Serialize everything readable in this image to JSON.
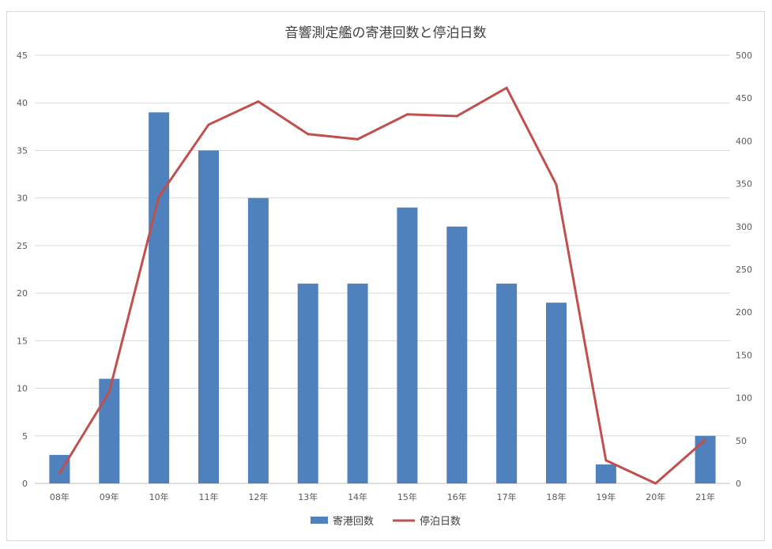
{
  "chart_data": {
    "type": "bar",
    "title": "音響測定艦の寄港回数と停泊日数",
    "categories": [
      "08年",
      "09年",
      "10年",
      "11年",
      "12年",
      "13年",
      "14年",
      "15年",
      "16年",
      "17年",
      "18年",
      "19年",
      "20年",
      "21年"
    ],
    "series": [
      {
        "name": "寄港回数",
        "type": "bar",
        "axis": "left",
        "color": "#4f81bd",
        "values": [
          3,
          11,
          39,
          35,
          30,
          21,
          21,
          29,
          27,
          21,
          19,
          2,
          0,
          5
        ]
      },
      {
        "name": "停泊日数",
        "type": "line",
        "axis": "right",
        "color": "#c0504d",
        "values": [
          12,
          107,
          335,
          419,
          446,
          408,
          402,
          431,
          429,
          462,
          349,
          27,
          0,
          51
        ]
      }
    ],
    "y_left": {
      "min": 0,
      "max": 45,
      "step": 5,
      "ticks": [
        "0",
        "5",
        "10",
        "15",
        "20",
        "25",
        "30",
        "35",
        "40",
        "45"
      ]
    },
    "y_right": {
      "min": 0,
      "max": 500,
      "step": 50,
      "ticks": [
        "0",
        "50",
        "100",
        "150",
        "200",
        "250",
        "300",
        "350",
        "400",
        "450",
        "500"
      ]
    },
    "grid": true,
    "legend": "bottom"
  }
}
